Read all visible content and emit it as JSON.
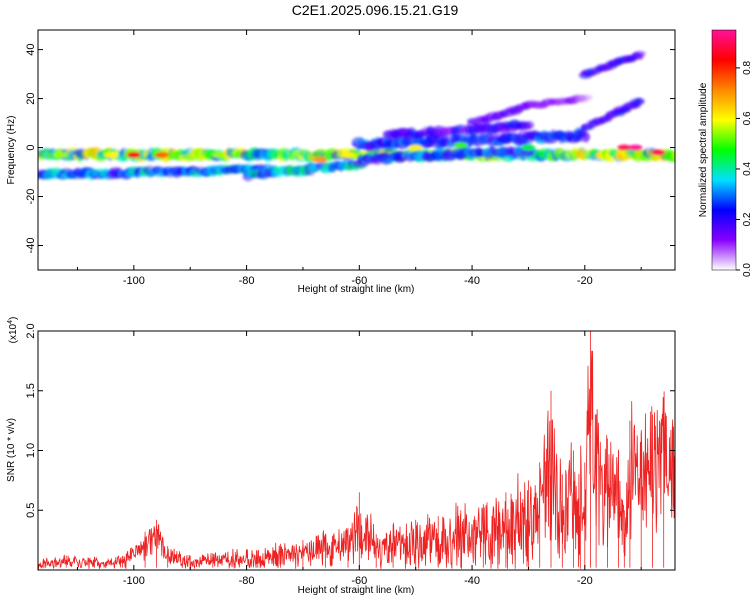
{
  "title": "C2E1.2025.096.15.21.G19",
  "colors": {
    "snr_line": "#ee2222",
    "axis": "#000000",
    "colormap": [
      "#ffffff",
      "#8800ff",
      "#0000ff",
      "#00e0ff",
      "#00ff00",
      "#ffff00",
      "#ff8800",
      "#ff0000",
      "#ff1099"
    ]
  },
  "chart_data": [
    {
      "type": "heatmap",
      "xlabel": "Height of straight line (km)",
      "ylabel": "Frequency (Hz)",
      "xlim": [
        -117,
        -4
      ],
      "ylim": [
        -50,
        48
      ],
      "x_ticks": [
        -100,
        -80,
        -60,
        -40,
        -20
      ],
      "x_tick_labels": [
        "-100",
        "-80",
        "-60",
        "-40",
        "-20"
      ],
      "y_ticks": [
        -40,
        -20,
        0,
        20,
        40
      ],
      "y_tick_labels": [
        "-40",
        "-20",
        "0",
        "20",
        "40"
      ],
      "colorbar": {
        "label": "Normalized spectral amplitude",
        "range": [
          0,
          0.95
        ],
        "ticks": [
          0,
          0.2,
          0.4,
          0.6,
          0.8
        ],
        "tick_labels": [
          "0.0",
          "0.2",
          "0.4",
          "0.6",
          "0.8"
        ]
      },
      "bands": [
        {
          "x": [
            -117,
            -4
          ],
          "y": [
            -3,
            -3
          ],
          "width": 3.5,
          "amp": 0.55
        },
        {
          "x": [
            -117,
            -75
          ],
          "y": [
            -11,
            -9
          ],
          "width": 3,
          "amp": 0.35
        },
        {
          "x": [
            -80,
            -60
          ],
          "y": [
            -11,
            -7
          ],
          "width": 3,
          "amp": 0.38
        },
        {
          "x": [
            -60,
            -30
          ],
          "y": [
            -5,
            -1
          ],
          "width": 3,
          "amp": 0.3
        },
        {
          "x": [
            -60,
            -20
          ],
          "y": [
            1,
            5
          ],
          "width": 4,
          "amp": 0.28
        },
        {
          "x": [
            -55,
            -30
          ],
          "y": [
            5,
            9
          ],
          "width": 3,
          "amp": 0.22
        },
        {
          "x": [
            -40,
            -30
          ],
          "y": [
            10,
            17
          ],
          "width": 2,
          "amp": 0.18
        },
        {
          "x": [
            -30,
            -20
          ],
          "y": [
            17,
            20
          ],
          "width": 1.8,
          "amp": 0.12
        },
        {
          "x": [
            -20,
            -10
          ],
          "y": [
            30,
            38
          ],
          "width": 2,
          "amp": 0.22
        },
        {
          "x": [
            -20,
            -10
          ],
          "y": [
            8,
            19
          ],
          "width": 2,
          "amp": 0.22
        }
      ],
      "peaks": [
        {
          "x": -113,
          "y": -3,
          "amp": 0.55
        },
        {
          "x": -104,
          "y": -3,
          "amp": 0.6
        },
        {
          "x": -100,
          "y": -3,
          "amp": 0.85
        },
        {
          "x": -95,
          "y": -3,
          "amp": 0.75
        },
        {
          "x": -85,
          "y": -3,
          "amp": 0.55
        },
        {
          "x": -67,
          "y": -5,
          "amp": 0.7
        },
        {
          "x": -62,
          "y": -3,
          "amp": 0.6
        },
        {
          "x": -50,
          "y": 0,
          "amp": 0.6
        },
        {
          "x": -42,
          "y": 1,
          "amp": 0.5
        },
        {
          "x": -30,
          "y": 0,
          "amp": 0.45
        },
        {
          "x": -13,
          "y": 0,
          "amp": 0.9
        },
        {
          "x": -11,
          "y": 0,
          "amp": 0.95
        },
        {
          "x": -7,
          "y": -2,
          "amp": 0.9
        }
      ]
    },
    {
      "type": "line",
      "xlabel": "Height of straight line (km)",
      "ylabel": "SNR (10 * v/v)",
      "multiplier_label": "(x10",
      "multiplier_exp": "4",
      "xlim": [
        -117,
        -4
      ],
      "ylim": [
        0,
        2.0
      ],
      "x_ticks": [
        -100,
        -80,
        -60,
        -40,
        -20
      ],
      "x_tick_labels": [
        "-100",
        "-80",
        "-60",
        "-40",
        "-20"
      ],
      "y_ticks": [
        0.5,
        1.0,
        1.5,
        2.0
      ],
      "y_tick_labels": [
        "0.5",
        "1.0",
        "1.5",
        "2.0"
      ],
      "series": [
        {
          "x": [
            -117,
            -112,
            -107,
            -102,
            -98,
            -96,
            -94,
            -90,
            -86,
            -82,
            -78,
            -74,
            -70,
            -66,
            -62,
            -60,
            -57,
            -54,
            -50,
            -46,
            -42,
            -38,
            -34,
            -30,
            -28,
            -26,
            -24,
            -22,
            -20,
            -19,
            -18,
            -16,
            -14,
            -13,
            -12,
            -10,
            -8,
            -6,
            -4
          ],
          "y": [
            0.08,
            0.12,
            0.1,
            0.12,
            0.32,
            0.42,
            0.2,
            0.12,
            0.14,
            0.15,
            0.16,
            0.22,
            0.25,
            0.3,
            0.35,
            0.65,
            0.3,
            0.38,
            0.42,
            0.45,
            0.5,
            0.55,
            0.65,
            0.75,
            0.9,
            1.5,
            0.8,
            1.0,
            0.9,
            2.0,
            1.3,
            1.1,
            1.0,
            0.5,
            1.25,
            1.15,
            1.3,
            1.4,
            1.1
          ],
          "noise": [
            0.05,
            0.07,
            0.06,
            0.07,
            0.08,
            0.06,
            0.08,
            0.07,
            0.08,
            0.09,
            0.1,
            0.12,
            0.14,
            0.16,
            0.18,
            0.2,
            0.2,
            0.24,
            0.28,
            0.3,
            0.34,
            0.38,
            0.42,
            0.45,
            0.5,
            0.5,
            0.5,
            0.55,
            0.55,
            0.5,
            0.5,
            0.5,
            0.5,
            0.3,
            0.3,
            0.25,
            0.25,
            0.25,
            0.2
          ]
        }
      ]
    }
  ]
}
